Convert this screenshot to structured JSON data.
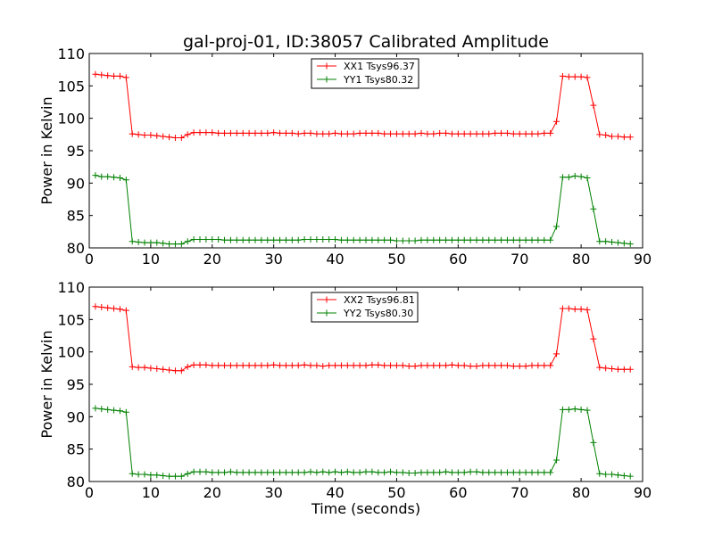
{
  "figure_title": "gal-proj-01, ID:38057 Calibrated Amplitude",
  "chart_data": [
    {
      "type": "line",
      "xlabel": "",
      "ylabel": "Power in Kelvin",
      "xlim": [
        0,
        90
      ],
      "ylim": [
        80,
        110
      ],
      "xticks": [
        0,
        10,
        20,
        30,
        40,
        50,
        60,
        70,
        80,
        90
      ],
      "yticks": [
        80,
        85,
        90,
        95,
        100,
        105,
        110
      ],
      "grid": false,
      "legend_position": "top-center",
      "x": [
        1,
        2,
        3,
        4,
        5,
        6,
        7,
        8,
        9,
        10,
        11,
        12,
        13,
        14,
        15,
        16,
        17,
        18,
        19,
        20,
        21,
        22,
        23,
        24,
        25,
        26,
        27,
        28,
        29,
        30,
        31,
        32,
        33,
        34,
        35,
        36,
        37,
        38,
        39,
        40,
        41,
        42,
        43,
        44,
        45,
        46,
        47,
        48,
        49,
        50,
        51,
        52,
        53,
        54,
        55,
        56,
        57,
        58,
        59,
        60,
        61,
        62,
        63,
        64,
        65,
        66,
        67,
        68,
        69,
        70,
        71,
        72,
        73,
        74,
        75,
        76,
        77,
        78,
        79,
        80,
        81,
        82,
        83,
        84,
        85,
        86,
        87,
        88
      ],
      "series": [
        {
          "name": "XX1 Tsys96.37",
          "color": "#ff0000",
          "values": [
            106.8,
            106.7,
            106.6,
            106.5,
            106.5,
            106.3,
            97.6,
            97.5,
            97.4,
            97.4,
            97.3,
            97.2,
            97.1,
            97.0,
            97.0,
            97.5,
            97.8,
            97.8,
            97.8,
            97.8,
            97.7,
            97.7,
            97.7,
            97.7,
            97.7,
            97.7,
            97.7,
            97.7,
            97.7,
            97.8,
            97.7,
            97.7,
            97.7,
            97.6,
            97.7,
            97.7,
            97.6,
            97.6,
            97.6,
            97.7,
            97.6,
            97.6,
            97.6,
            97.7,
            97.7,
            97.7,
            97.7,
            97.6,
            97.6,
            97.6,
            97.6,
            97.6,
            97.6,
            97.7,
            97.6,
            97.6,
            97.7,
            97.7,
            97.6,
            97.6,
            97.6,
            97.6,
            97.6,
            97.6,
            97.6,
            97.7,
            97.7,
            97.7,
            97.6,
            97.6,
            97.6,
            97.6,
            97.6,
            97.7,
            97.7,
            99.5,
            106.5,
            106.4,
            106.4,
            106.4,
            106.3,
            102.0,
            97.5,
            97.4,
            97.2,
            97.2,
            97.1,
            97.1
          ]
        },
        {
          "name": "YY1 Tsys80.32",
          "color": "#008000",
          "values": [
            91.2,
            91.0,
            91.0,
            90.9,
            90.8,
            90.5,
            81.0,
            80.9,
            80.8,
            80.8,
            80.8,
            80.7,
            80.6,
            80.6,
            80.6,
            81.0,
            81.3,
            81.3,
            81.3,
            81.3,
            81.3,
            81.2,
            81.2,
            81.2,
            81.2,
            81.2,
            81.2,
            81.2,
            81.2,
            81.2,
            81.2,
            81.2,
            81.2,
            81.2,
            81.3,
            81.3,
            81.3,
            81.3,
            81.3,
            81.3,
            81.2,
            81.2,
            81.2,
            81.2,
            81.2,
            81.2,
            81.2,
            81.2,
            81.2,
            81.1,
            81.1,
            81.1,
            81.1,
            81.2,
            81.2,
            81.2,
            81.2,
            81.2,
            81.2,
            81.2,
            81.2,
            81.2,
            81.2,
            81.2,
            81.2,
            81.2,
            81.2,
            81.2,
            81.2,
            81.2,
            81.2,
            81.2,
            81.2,
            81.2,
            81.2,
            83.3,
            90.9,
            90.9,
            91.1,
            91.0,
            90.8,
            86.0,
            81.0,
            81.0,
            80.9,
            80.8,
            80.7,
            80.6
          ]
        }
      ]
    },
    {
      "type": "line",
      "xlabel": "Time (seconds)",
      "ylabel": "Power in Kelvin",
      "xlim": [
        0,
        90
      ],
      "ylim": [
        80,
        110
      ],
      "xticks": [
        0,
        10,
        20,
        30,
        40,
        50,
        60,
        70,
        80,
        90
      ],
      "yticks": [
        80,
        85,
        90,
        95,
        100,
        105,
        110
      ],
      "grid": false,
      "legend_position": "top-center",
      "x": [
        1,
        2,
        3,
        4,
        5,
        6,
        7,
        8,
        9,
        10,
        11,
        12,
        13,
        14,
        15,
        16,
        17,
        18,
        19,
        20,
        21,
        22,
        23,
        24,
        25,
        26,
        27,
        28,
        29,
        30,
        31,
        32,
        33,
        34,
        35,
        36,
        37,
        38,
        39,
        40,
        41,
        42,
        43,
        44,
        45,
        46,
        47,
        48,
        49,
        50,
        51,
        52,
        53,
        54,
        55,
        56,
        57,
        58,
        59,
        60,
        61,
        62,
        63,
        64,
        65,
        66,
        67,
        68,
        69,
        70,
        71,
        72,
        73,
        74,
        75,
        76,
        77,
        78,
        79,
        80,
        81,
        82,
        83,
        84,
        85,
        86,
        87,
        88
      ],
      "series": [
        {
          "name": "XX2 Tsys96.81",
          "color": "#ff0000",
          "values": [
            107.0,
            106.9,
            106.8,
            106.7,
            106.6,
            106.4,
            97.7,
            97.6,
            97.6,
            97.5,
            97.4,
            97.3,
            97.2,
            97.1,
            97.1,
            97.7,
            98.0,
            98.0,
            98.0,
            97.9,
            97.9,
            97.9,
            97.9,
            97.9,
            97.9,
            97.9,
            97.9,
            97.9,
            97.9,
            98.0,
            97.9,
            97.9,
            97.9,
            97.9,
            98.0,
            97.9,
            97.9,
            97.8,
            97.9,
            97.9,
            97.9,
            97.9,
            97.9,
            97.9,
            97.9,
            98.0,
            98.0,
            97.9,
            97.9,
            97.9,
            97.9,
            97.8,
            97.8,
            97.9,
            97.9,
            97.9,
            97.9,
            97.9,
            98.0,
            97.9,
            97.9,
            97.8,
            97.8,
            97.9,
            97.9,
            97.9,
            97.9,
            97.9,
            97.8,
            97.8,
            97.8,
            97.9,
            97.9,
            97.9,
            97.9,
            99.7,
            106.7,
            106.7,
            106.6,
            106.6,
            106.5,
            102.0,
            97.6,
            97.5,
            97.4,
            97.3,
            97.3,
            97.3
          ]
        },
        {
          "name": "YY2 Tsys80.30",
          "color": "#008000",
          "values": [
            91.3,
            91.2,
            91.1,
            91.0,
            90.9,
            90.7,
            81.2,
            81.1,
            81.1,
            81.0,
            81.0,
            80.9,
            80.8,
            80.8,
            80.8,
            81.2,
            81.5,
            81.5,
            81.5,
            81.4,
            81.4,
            81.4,
            81.5,
            81.4,
            81.4,
            81.4,
            81.4,
            81.4,
            81.4,
            81.4,
            81.4,
            81.4,
            81.4,
            81.4,
            81.4,
            81.5,
            81.4,
            81.5,
            81.4,
            81.5,
            81.4,
            81.5,
            81.4,
            81.4,
            81.5,
            81.5,
            81.4,
            81.4,
            81.5,
            81.4,
            81.4,
            81.3,
            81.3,
            81.4,
            81.4,
            81.4,
            81.4,
            81.5,
            81.4,
            81.4,
            81.4,
            81.5,
            81.5,
            81.4,
            81.4,
            81.4,
            81.4,
            81.4,
            81.4,
            81.4,
            81.4,
            81.4,
            81.4,
            81.4,
            81.4,
            83.3,
            91.1,
            91.1,
            91.2,
            91.1,
            91.0,
            86.0,
            81.2,
            81.1,
            81.1,
            81.0,
            80.9,
            80.8
          ]
        }
      ]
    }
  ]
}
